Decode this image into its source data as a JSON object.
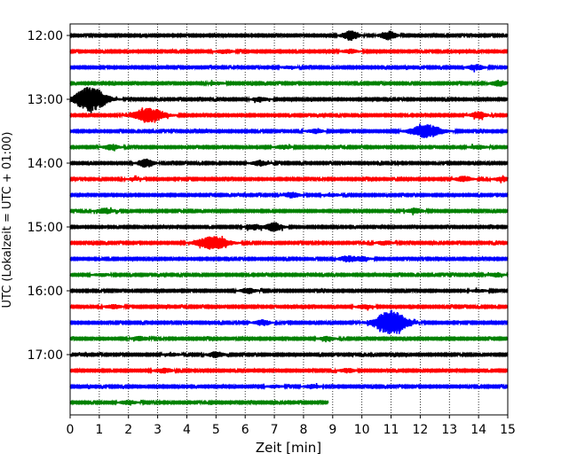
{
  "chart_data": {
    "type": "line",
    "title": "",
    "xlabel": "Zeit  [min]",
    "ylabel": "UTC (Lokalzeit = UTC + 01:00)",
    "xlim": [
      0,
      15
    ],
    "x_ticks": [
      "0",
      "1",
      "2",
      "3",
      "4",
      "5",
      "6",
      "7",
      "8",
      "9",
      "10",
      "11",
      "12",
      "13",
      "14",
      "15"
    ],
    "y_ticks": [
      "12:00",
      "13:00",
      "14:00",
      "15:00",
      "16:00",
      "17:00"
    ],
    "grid": "vertical dotted",
    "colors_cycle": [
      "#000000",
      "#ff0000",
      "#0000ff",
      "#008000"
    ],
    "series": [
      {
        "start": "12:00",
        "color": "#000000",
        "bursts": [
          [
            9.6,
            0.7
          ],
          [
            10.9,
            0.6
          ]
        ]
      },
      {
        "start": "12:15",
        "color": "#ff0000",
        "bursts": [
          [
            5.3,
            0.3
          ],
          [
            9.6,
            0.3
          ]
        ]
      },
      {
        "start": "12:30",
        "color": "#0000ff",
        "bursts": [
          [
            13.9,
            0.4
          ],
          [
            7.5,
            0.2
          ]
        ]
      },
      {
        "start": "12:45",
        "color": "#008000",
        "bursts": [
          [
            14.7,
            0.4
          ],
          [
            5.0,
            0.2
          ]
        ]
      },
      {
        "start": "13:00",
        "color": "#000000",
        "bursts": [
          [
            0.7,
            1.7
          ],
          [
            6.5,
            0.3
          ]
        ]
      },
      {
        "start": "13:15",
        "color": "#ff0000",
        "bursts": [
          [
            2.7,
            1.0
          ],
          [
            14.0,
            0.5
          ]
        ]
      },
      {
        "start": "13:30",
        "color": "#0000ff",
        "bursts": [
          [
            12.2,
            0.9
          ],
          [
            8.4,
            0.3
          ]
        ]
      },
      {
        "start": "13:45",
        "color": "#008000",
        "bursts": [
          [
            1.4,
            0.4
          ],
          [
            7.3,
            0.3
          ],
          [
            14.0,
            0.3
          ]
        ]
      },
      {
        "start": "14:00",
        "color": "#000000",
        "bursts": [
          [
            2.6,
            0.6
          ],
          [
            6.5,
            0.4
          ]
        ]
      },
      {
        "start": "14:15",
        "color": "#ff0000",
        "bursts": [
          [
            13.5,
            0.4
          ],
          [
            2.2,
            0.2
          ],
          [
            14.8,
            0.3
          ]
        ]
      },
      {
        "start": "14:30",
        "color": "#0000ff",
        "bursts": [
          [
            7.6,
            0.4
          ],
          [
            9.0,
            0.2
          ]
        ]
      },
      {
        "start": "14:45",
        "color": "#008000",
        "bursts": [
          [
            1.2,
            0.4
          ],
          [
            11.8,
            0.4
          ]
        ]
      },
      {
        "start": "15:00",
        "color": "#000000",
        "bursts": [
          [
            7.0,
            0.6
          ],
          [
            6.3,
            0.4
          ]
        ]
      },
      {
        "start": "15:15",
        "color": "#ff0000",
        "bursts": [
          [
            4.9,
            0.9
          ],
          [
            10.8,
            0.3
          ]
        ]
      },
      {
        "start": "15:30",
        "color": "#0000ff",
        "bursts": [
          [
            9.5,
            0.4
          ],
          [
            10.0,
            0.3
          ]
        ]
      },
      {
        "start": "15:45",
        "color": "#008000",
        "bursts": [
          [
            14.6,
            0.3
          ],
          [
            1.1,
            0.2
          ]
        ]
      },
      {
        "start": "16:00",
        "color": "#000000",
        "bursts": [
          [
            6.1,
            0.4
          ],
          [
            14.0,
            0.2
          ]
        ]
      },
      {
        "start": "16:15",
        "color": "#ff0000",
        "bursts": [
          [
            1.5,
            0.3
          ],
          [
            10.1,
            0.3
          ]
        ]
      },
      {
        "start": "16:30",
        "color": "#0000ff",
        "bursts": [
          [
            11.0,
            1.7
          ],
          [
            6.6,
            0.4
          ]
        ]
      },
      {
        "start": "16:45",
        "color": "#008000",
        "bursts": [
          [
            2.4,
            0.3
          ],
          [
            8.8,
            0.3
          ]
        ]
      },
      {
        "start": "17:00",
        "color": "#000000",
        "bursts": [
          [
            5.0,
            0.4
          ],
          [
            3.5,
            0.2
          ]
        ]
      },
      {
        "start": "17:15",
        "color": "#ff0000",
        "bursts": [
          [
            3.2,
            0.4
          ],
          [
            9.5,
            0.3
          ]
        ]
      },
      {
        "start": "17:30",
        "color": "#0000ff",
        "bursts": [
          [
            8.3,
            0.3
          ],
          [
            7.0,
            0.2
          ]
        ]
      },
      {
        "start": "17:45",
        "color": "#008000",
        "end_x": 8.85,
        "bursts": [
          [
            2.0,
            0.3
          ]
        ]
      }
    ]
  }
}
